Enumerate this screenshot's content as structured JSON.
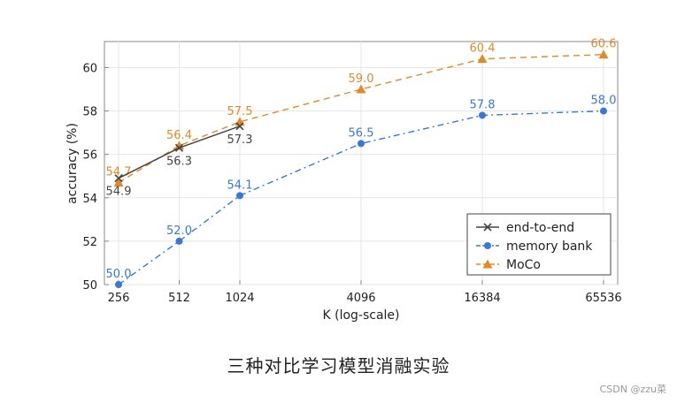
{
  "chart_data": {
    "type": "line",
    "title": "",
    "xlabel": "K (log-scale)",
    "ylabel": "accuracy (%)",
    "xscale": "log2",
    "xticks": [
      256,
      512,
      1024,
      4096,
      16384,
      65536
    ],
    "xtick_labels": [
      "256",
      "512",
      "1024",
      "4096",
      "16384",
      "65536"
    ],
    "ylim": [
      50,
      61.2
    ],
    "yticks": [
      50,
      52,
      54,
      56,
      58,
      60
    ],
    "grid": true,
    "legend_position": "bottom-right",
    "series": [
      {
        "name": "end-to-end",
        "color": "#444444",
        "marker": "x",
        "linestyle": "solid",
        "label_position": "below",
        "x": [
          256,
          512,
          1024
        ],
        "values": [
          54.9,
          56.3,
          57.3
        ],
        "labels": [
          "54.9",
          "56.3",
          "57.3"
        ]
      },
      {
        "name": "memory bank",
        "color": "#3a78d4",
        "marker": "circle",
        "linestyle": "dashdot",
        "label_position": "above",
        "x": [
          256,
          512,
          1024,
          4096,
          16384,
          65536
        ],
        "values": [
          50.0,
          52.0,
          54.1,
          56.5,
          57.8,
          58.0
        ],
        "labels": [
          "50.0",
          "52.0",
          "54.1",
          "56.5",
          "57.8",
          "58.0"
        ]
      },
      {
        "name": "MoCo",
        "color": "#e08a2a",
        "marker": "triangle",
        "linestyle": "dashed",
        "label_position": "above",
        "x": [
          256,
          512,
          1024,
          4096,
          16384,
          65536
        ],
        "values": [
          54.7,
          56.4,
          57.5,
          59.0,
          60.4,
          60.6
        ],
        "labels": [
          "54.7",
          "56.4",
          "57.5",
          "59.0",
          "60.4",
          "60.6"
        ]
      }
    ]
  },
  "caption": "三种对比学习模型消融实验",
  "watermark": "CSDN @zzu菜"
}
